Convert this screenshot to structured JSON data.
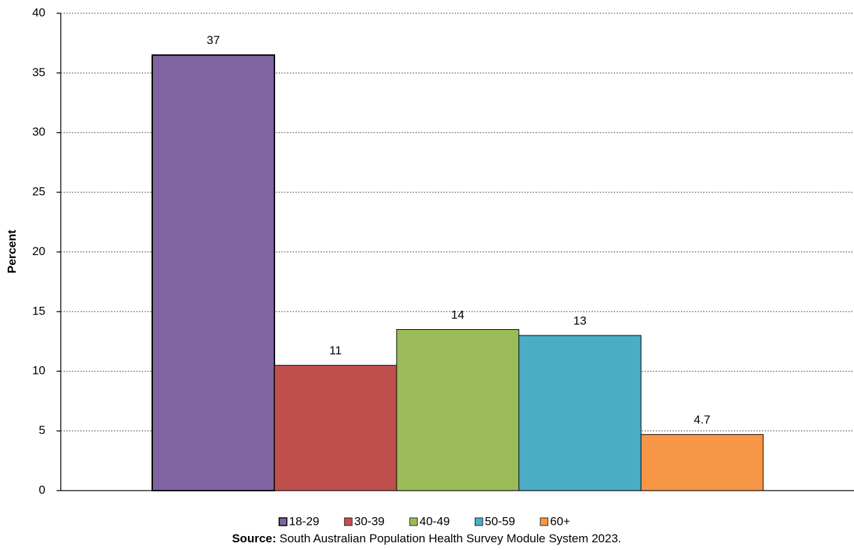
{
  "chart_data": {
    "type": "bar",
    "y_label": "Percent",
    "series": [
      {
        "name": "18-29",
        "color": "#8064a2",
        "values": [
          36.5
        ],
        "value_labels": [
          "37"
        ]
      },
      {
        "name": "30-39",
        "color": "#c0504d",
        "values": [
          10.5
        ],
        "value_labels": [
          "11"
        ]
      },
      {
        "name": "40-49",
        "color": "#9bbb59",
        "values": [
          13.5
        ],
        "value_labels": [
          "14"
        ]
      },
      {
        "name": "50-59",
        "color": "#4bacc6",
        "values": [
          13
        ],
        "value_labels": [
          "13"
        ]
      },
      {
        "name": "60+",
        "color": "#f79646",
        "values": [
          4.7
        ],
        "value_labels": [
          "4.7"
        ]
      }
    ],
    "ylim": [
      0,
      40
    ],
    "yticks": [
      0,
      5,
      10,
      15,
      20,
      25,
      30,
      35,
      40
    ],
    "grid": true,
    "legend": "bottom",
    "source_label": "Source:",
    "source": "South Australian Population Health Survey Module System 2023."
  }
}
